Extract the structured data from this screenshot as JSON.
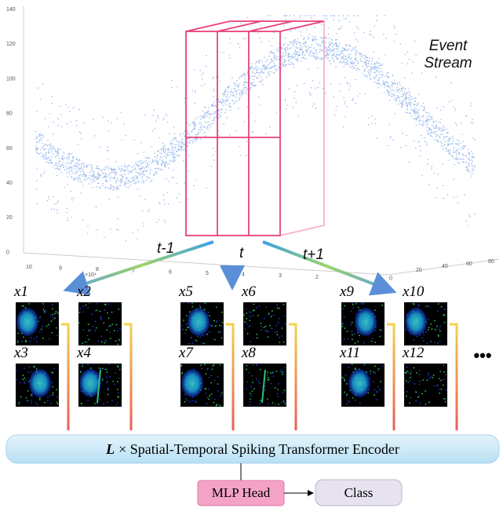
{
  "axes": {
    "z_ticks": [
      "140",
      "120",
      "100",
      "80",
      "60",
      "40",
      "20",
      "0"
    ],
    "x_ticks": [
      "10",
      "9",
      "8",
      "7",
      "6",
      "5",
      "4",
      "3",
      "2",
      "0"
    ],
    "x_scale": "×10⁴",
    "y_ticks": [
      "20",
      "40",
      "60",
      "80"
    ]
  },
  "event_stream": {
    "line1": "Event",
    "line2": "Stream"
  },
  "time_steps": [
    "t-1",
    "t",
    "t+1"
  ],
  "frames": [
    "x1",
    "x2",
    "x3",
    "x4",
    "x5",
    "x6",
    "x7",
    "x8",
    "x9",
    "x10",
    "x11",
    "x12"
  ],
  "ellipsis": "•••",
  "encoder": {
    "prefix": "L",
    "label": "× Spatial-Temporal Spiking Transformer Encoder"
  },
  "mlp_head": "MLP Head",
  "class": "Class"
}
